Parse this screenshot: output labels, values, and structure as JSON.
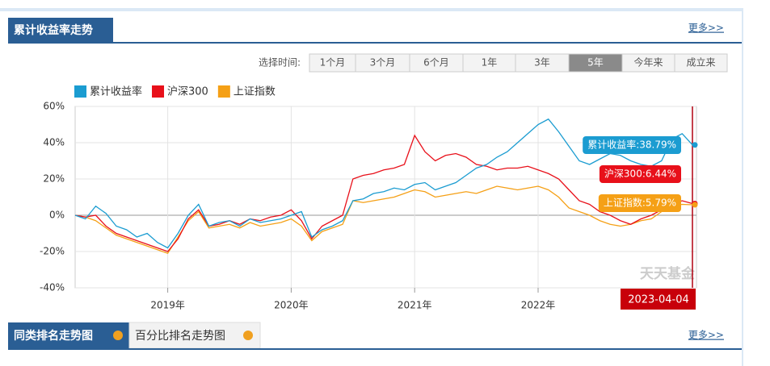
{
  "header": {
    "title": "累计收益率走势",
    "more": "更多>>"
  },
  "time_selector": {
    "label": "选择时间:",
    "options": [
      "1个月",
      "3个月",
      "6个月",
      "1年",
      "3年",
      "5年",
      "今年来",
      "成立来"
    ],
    "selected_index": 5
  },
  "chart_data": {
    "type": "line",
    "categories": [
      null,
      null,
      null,
      null,
      null,
      null,
      null,
      null,
      null,
      "2019年",
      null,
      null,
      null,
      null,
      null,
      null,
      null,
      null,
      null,
      null,
      null,
      "2020年",
      null,
      null,
      null,
      null,
      null,
      null,
      null,
      null,
      null,
      null,
      null,
      "2021年",
      null,
      null,
      null,
      null,
      null,
      null,
      null,
      null,
      null,
      null,
      null,
      "2022年",
      null,
      null,
      null,
      null,
      null,
      null,
      null,
      null,
      null,
      null,
      null,
      null,
      null,
      null,
      "2023-04-04"
    ],
    "series": [
      {
        "name": "累计收益率",
        "color": "#1b9cd1",
        "values": [
          0,
          -2,
          5,
          1,
          -6,
          -8,
          -12,
          -10,
          -15,
          -18,
          -10,
          0,
          6,
          -6,
          -4,
          -3,
          -6,
          -2,
          -4,
          -3,
          -2,
          0,
          2,
          -12,
          -8,
          -6,
          -3,
          8,
          9,
          12,
          13,
          15,
          14,
          17,
          18,
          14,
          16,
          18,
          22,
          26,
          28,
          32,
          35,
          40,
          45,
          50,
          53,
          46,
          38,
          30,
          28,
          31,
          34,
          33,
          30,
          28,
          27,
          30,
          42,
          45,
          38.79
        ],
        "value_labels": [
          null,
          null,
          null,
          null,
          null,
          null,
          null,
          null,
          null,
          null,
          null,
          null,
          null,
          null,
          null,
          null,
          null,
          null,
          null,
          null,
          null,
          null,
          null,
          null,
          null,
          null,
          null,
          null,
          null,
          null,
          null,
          null,
          null,
          null,
          null,
          null,
          null,
          null,
          null,
          null,
          null,
          null,
          null,
          null,
          null,
          null,
          null,
          null,
          null,
          null,
          null,
          null,
          null,
          null,
          null,
          null,
          null,
          null,
          null,
          null,
          "累计收益率:38.79%"
        ]
      },
      {
        "name": "沪深300",
        "color": "#e8101a",
        "values": [
          0,
          -1,
          0,
          -6,
          -10,
          -12,
          -14,
          -16,
          -18,
          -20,
          -13,
          -2,
          3,
          -6,
          -5,
          -3,
          -5,
          -2,
          -3,
          -1,
          0,
          3,
          -3,
          -13,
          -6,
          -3,
          0,
          20,
          22,
          23,
          25,
          26,
          28,
          44,
          35,
          30,
          33,
          34,
          32,
          28,
          27,
          25,
          26,
          26,
          27,
          25,
          23,
          20,
          14,
          8,
          6,
          2,
          0,
          -3,
          -5,
          -2,
          0,
          3,
          6,
          8,
          6.44
        ],
        "value_labels": [
          null,
          null,
          null,
          null,
          null,
          null,
          null,
          null,
          null,
          null,
          null,
          null,
          null,
          null,
          null,
          null,
          null,
          null,
          null,
          null,
          null,
          null,
          null,
          null,
          null,
          null,
          null,
          null,
          null,
          null,
          null,
          null,
          null,
          null,
          null,
          null,
          null,
          null,
          null,
          null,
          null,
          null,
          null,
          null,
          null,
          null,
          null,
          null,
          null,
          null,
          null,
          null,
          null,
          null,
          null,
          null,
          null,
          null,
          null,
          null,
          "沪深300:6.44%"
        ]
      },
      {
        "name": "上证指数",
        "color": "#f5a016",
        "values": [
          0,
          -1,
          -3,
          -7,
          -11,
          -13,
          -15,
          -17,
          -19,
          -21,
          -12,
          -3,
          2,
          -7,
          -6,
          -5,
          -7,
          -4,
          -6,
          -5,
          -4,
          -2,
          -6,
          -14,
          -9,
          -7,
          -5,
          8,
          7,
          8,
          9,
          10,
          12,
          14,
          13,
          10,
          11,
          12,
          13,
          12,
          14,
          16,
          15,
          14,
          15,
          16,
          14,
          10,
          4,
          2,
          0,
          -3,
          -5,
          -6,
          -5,
          -3,
          -2,
          2,
          5,
          6,
          5.79
        ],
        "value_labels": [
          null,
          null,
          null,
          null,
          null,
          null,
          null,
          null,
          null,
          null,
          null,
          null,
          null,
          null,
          null,
          null,
          null,
          null,
          null,
          null,
          null,
          null,
          null,
          null,
          null,
          null,
          null,
          null,
          null,
          null,
          null,
          null,
          null,
          null,
          null,
          null,
          null,
          null,
          null,
          null,
          null,
          null,
          null,
          null,
          null,
          null,
          null,
          null,
          null,
          null,
          null,
          null,
          null,
          null,
          null,
          null,
          null,
          null,
          null,
          null,
          "上证指数:5.79%"
        ]
      }
    ],
    "ylim": [
      -40,
      60
    ],
    "yticks": [
      {
        "value": -40,
        "label": "-40%"
      },
      {
        "value": -20,
        "label": "-20%"
      },
      {
        "value": 0,
        "label": "0%"
      },
      {
        "value": 20,
        "label": "20%"
      },
      {
        "value": 40,
        "label": "40%"
      },
      {
        "value": 60,
        "label": "60%"
      }
    ],
    "grid": true,
    "legend": "top-left",
    "watermark": "天天基金"
  },
  "bottom_tabs": {
    "tabs": [
      "同类排名走势图",
      "百分比排名走势图"
    ],
    "active_index": 0,
    "more": "更多>>"
  }
}
